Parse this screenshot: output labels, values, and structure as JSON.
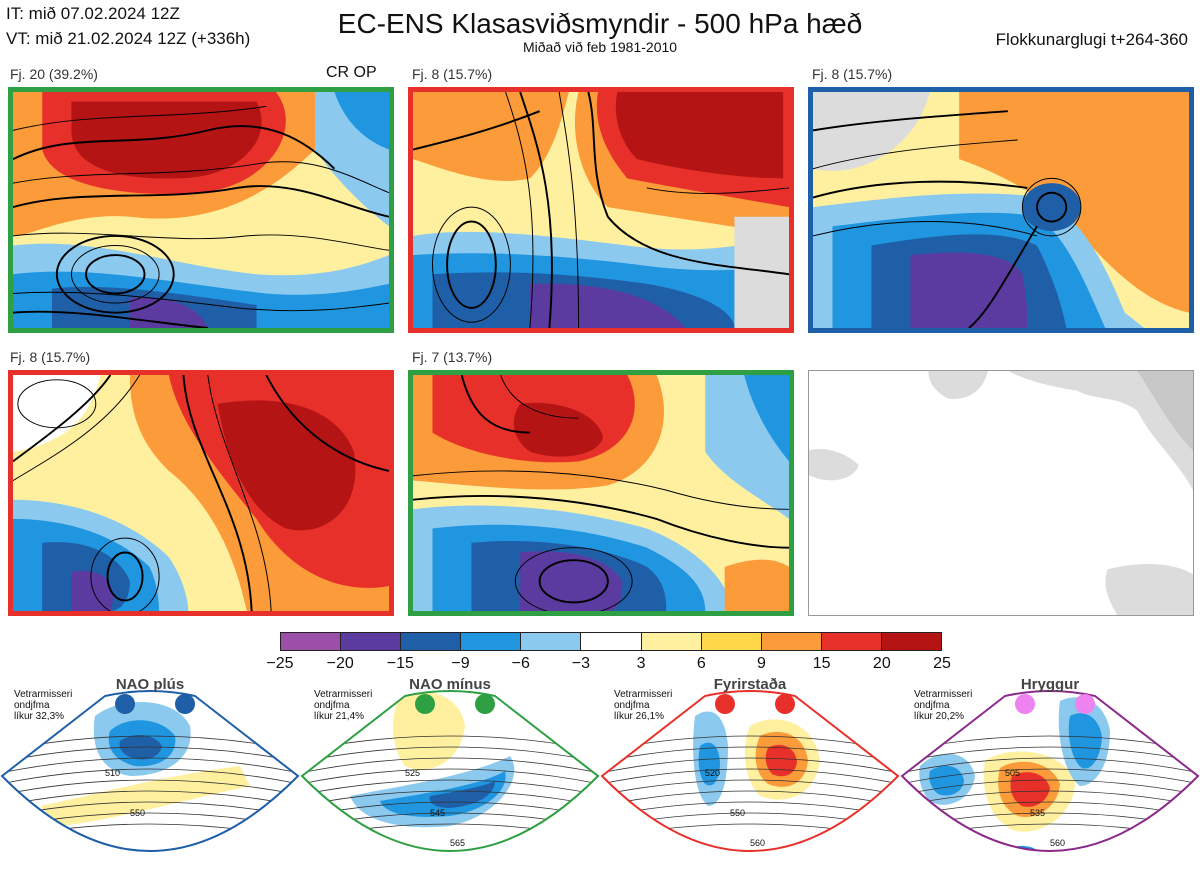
{
  "header": {
    "initial_time": "IT: mið 07.02.2024 12Z",
    "valid_time": "VT: mið 21.02.2024 12Z  (+336h)",
    "title": "EC-ENS Klasasviðsmyndir - 500 hPa hæð",
    "subtitle": "Miðað við feb 1981-2010",
    "cluster_window": "Flokkunarglugi t+264-360"
  },
  "clusters": [
    {
      "label": "Fj. 20 (39.2%)",
      "tag": "CR OP",
      "regime": "nao-minus",
      "border_color": "#2ea043"
    },
    {
      "label": "Fj. 8 (15.7%)",
      "tag": "",
      "regime": "blocking",
      "border_color": "#e8302a"
    },
    {
      "label": "Fj. 8 (15.7%)",
      "tag": "",
      "regime": "nao-plus",
      "border_color": "#1f5fa8"
    },
    {
      "label": "Fj. 8 (15.7%)",
      "tag": "",
      "regime": "blocking",
      "border_color": "#e8302a"
    },
    {
      "label": "Fj. 7 (13.7%)",
      "tag": "",
      "regime": "nao-minus",
      "border_color": "#2ea043"
    }
  ],
  "colorbar": {
    "colors": [
      "#9b4fa8",
      "#5b3ba0",
      "#1f5fa8",
      "#1f96df",
      "#8cc9ef",
      "#ffffff",
      "#fff0a0",
      "#ffd84a",
      "#fb9b3a",
      "#e8302a",
      "#b51414"
    ],
    "ticks": [
      "−25",
      "−20",
      "−15",
      "−9",
      "−6",
      "−3",
      "3",
      "6",
      "9",
      "15",
      "20",
      "25"
    ]
  },
  "regimes": [
    {
      "name": "NAO plús",
      "note_lines": [
        "Vetrarmisseri",
        "ondjfma",
        "líkur 32,3%"
      ],
      "dot_color": "#1f5fa8",
      "border_color": "#1f5fa8",
      "contour_labels": [
        "510",
        "550"
      ]
    },
    {
      "name": "NAO mínus",
      "note_lines": [
        "Vetrarmisseri",
        "ondjfma",
        "líkur 21,4%"
      ],
      "dot_color": "#2ea043",
      "border_color": "#2ea043",
      "contour_labels": [
        "525",
        "545",
        "565"
      ]
    },
    {
      "name": "Fyrirstaða",
      "note_lines": [
        "Vetrarmisseri",
        "ondjfma",
        "líkur 26,1%"
      ],
      "dot_color": "#e8302a",
      "border_color": "#e8302a",
      "contour_labels": [
        "520",
        "550",
        "560"
      ]
    },
    {
      "name": "Hryggur",
      "note_lines": [
        "Vetrarmisseri",
        "ondjfma",
        "líkur 20,2%"
      ],
      "dot_color": "#ee82ee",
      "border_color": "#8b2a8b",
      "contour_labels": [
        "505",
        "535",
        "560"
      ]
    }
  ]
}
